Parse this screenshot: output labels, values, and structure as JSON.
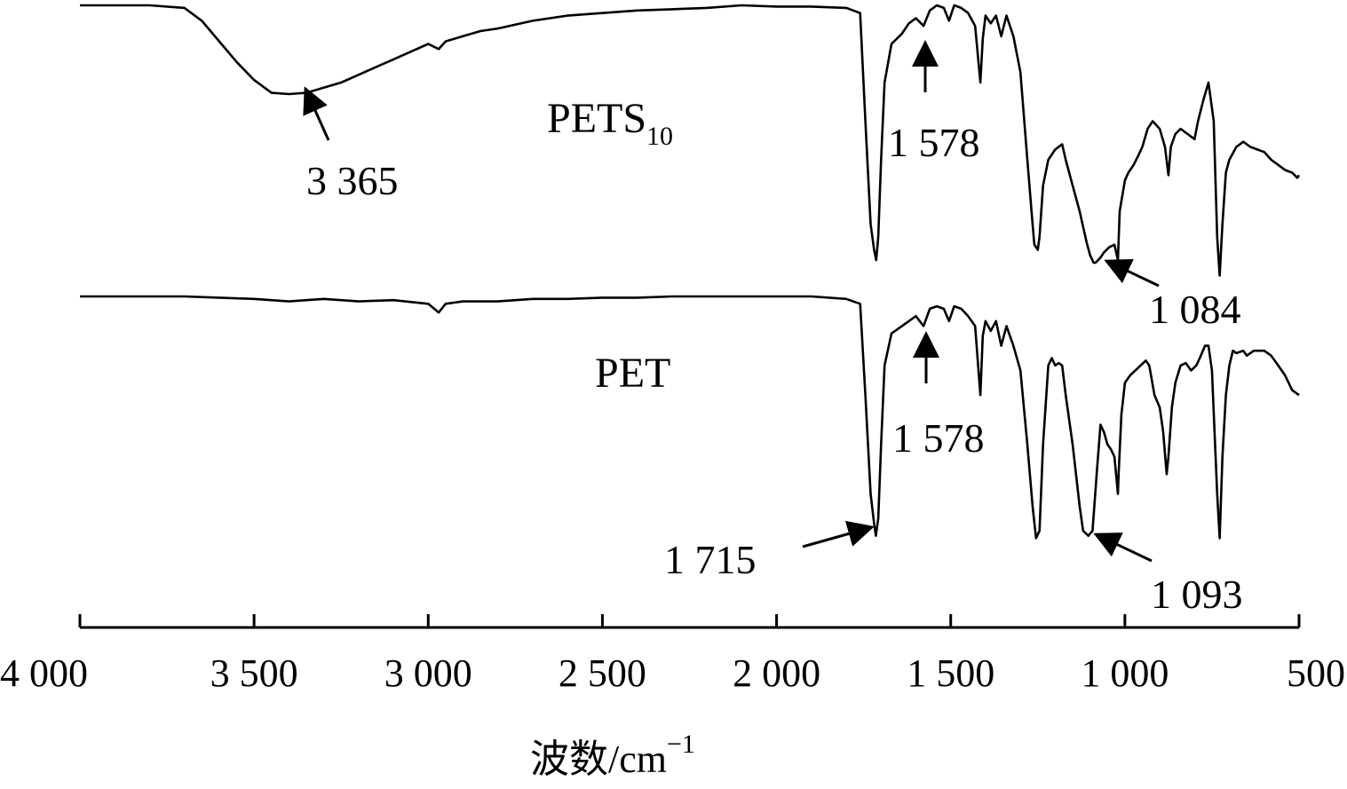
{
  "chart_data": {
    "type": "line",
    "title": "",
    "xlabel": "波数/cm⁻¹",
    "xlabel_parts": {
      "base": "波数/cm",
      "sup": "−1"
    },
    "ylabel": "",
    "xlim": [
      4000,
      500
    ],
    "x_reversed": true,
    "y_ticks_shown": false,
    "grid": false,
    "x_ticks": [
      4000,
      3500,
      3000,
      2500,
      2000,
      1500,
      1000,
      500
    ],
    "x_tick_labels": [
      "4 000",
      "3 500",
      "3 000",
      "2 500",
      "2 000",
      "1 500",
      "1 000",
      "500"
    ],
    "series": [
      {
        "name": "PETS10",
        "label_base": "PETS",
        "label_sub": "10",
        "ylim": [
          0,
          100
        ],
        "points": [
          [
            4000,
            100
          ],
          [
            3800,
            100
          ],
          [
            3700,
            99
          ],
          [
            3650,
            94
          ],
          [
            3600,
            86
          ],
          [
            3550,
            78
          ],
          [
            3500,
            71
          ],
          [
            3450,
            66
          ],
          [
            3400,
            65.5
          ],
          [
            3350,
            66
          ],
          [
            3300,
            68
          ],
          [
            3250,
            70
          ],
          [
            3200,
            73
          ],
          [
            3150,
            76
          ],
          [
            3100,
            79
          ],
          [
            3050,
            82
          ],
          [
            3000,
            85
          ],
          [
            2970,
            83
          ],
          [
            2950,
            86
          ],
          [
            2900,
            88
          ],
          [
            2850,
            90
          ],
          [
            2800,
            91
          ],
          [
            2700,
            94
          ],
          [
            2600,
            96
          ],
          [
            2500,
            97
          ],
          [
            2400,
            98
          ],
          [
            2300,
            98.5
          ],
          [
            2200,
            99
          ],
          [
            2100,
            100
          ],
          [
            2000,
            99.5
          ],
          [
            1900,
            99.5
          ],
          [
            1800,
            99
          ],
          [
            1760,
            97
          ],
          [
            1745,
            55
          ],
          [
            1730,
            15
          ],
          [
            1720,
            5
          ],
          [
            1714,
            1
          ],
          [
            1708,
            10
          ],
          [
            1700,
            40
          ],
          [
            1690,
            70
          ],
          [
            1670,
            85
          ],
          [
            1640,
            89
          ],
          [
            1620,
            93
          ],
          [
            1600,
            95
          ],
          [
            1578,
            92
          ],
          [
            1560,
            98
          ],
          [
            1540,
            100
          ],
          [
            1520,
            99
          ],
          [
            1505,
            94
          ],
          [
            1490,
            100
          ],
          [
            1470,
            99
          ],
          [
            1450,
            97
          ],
          [
            1430,
            92
          ],
          [
            1415,
            70
          ],
          [
            1408,
            87
          ],
          [
            1400,
            96
          ],
          [
            1385,
            93
          ],
          [
            1370,
            96
          ],
          [
            1355,
            88
          ],
          [
            1340,
            96
          ],
          [
            1320,
            88
          ],
          [
            1300,
            74
          ],
          [
            1280,
            40
          ],
          [
            1265,
            15
          ],
          [
            1260,
            7
          ],
          [
            1250,
            5
          ],
          [
            1245,
            10
          ],
          [
            1235,
            30
          ],
          [
            1220,
            40
          ],
          [
            1200,
            44
          ],
          [
            1180,
            46
          ],
          [
            1170,
            40
          ],
          [
            1150,
            30
          ],
          [
            1130,
            20
          ],
          [
            1110,
            8
          ],
          [
            1100,
            3
          ],
          [
            1090,
            0
          ],
          [
            1084,
            0
          ],
          [
            1070,
            2
          ],
          [
            1060,
            4
          ],
          [
            1045,
            6
          ],
          [
            1030,
            7
          ],
          [
            1020,
            1
          ],
          [
            1015,
            20
          ],
          [
            1000,
            32
          ],
          [
            990,
            35
          ],
          [
            975,
            38
          ],
          [
            960,
            42
          ],
          [
            950,
            45
          ],
          [
            935,
            52
          ],
          [
            920,
            55
          ],
          [
            900,
            52
          ],
          [
            885,
            45
          ],
          [
            875,
            34
          ],
          [
            868,
            45
          ],
          [
            855,
            50
          ],
          [
            840,
            52
          ],
          [
            820,
            50
          ],
          [
            800,
            48
          ],
          [
            790,
            55
          ],
          [
            775,
            63
          ],
          [
            760,
            70
          ],
          [
            745,
            55
          ],
          [
            735,
            10
          ],
          [
            728,
            -5
          ],
          [
            720,
            15
          ],
          [
            710,
            35
          ],
          [
            700,
            40
          ],
          [
            680,
            45
          ],
          [
            660,
            47
          ],
          [
            640,
            45
          ],
          [
            620,
            44
          ],
          [
            600,
            43
          ],
          [
            580,
            40
          ],
          [
            560,
            38
          ],
          [
            540,
            36
          ],
          [
            520,
            35
          ],
          [
            505,
            33
          ],
          [
            500,
            34
          ]
        ]
      },
      {
        "name": "PET",
        "label_base": "PET",
        "label_sub": "",
        "ylim": [
          0,
          100
        ],
        "points": [
          [
            4000,
            100
          ],
          [
            3800,
            100
          ],
          [
            3700,
            100
          ],
          [
            3600,
            99.5
          ],
          [
            3500,
            99
          ],
          [
            3400,
            98
          ],
          [
            3300,
            99
          ],
          [
            3200,
            98
          ],
          [
            3100,
            98.5
          ],
          [
            3000,
            97
          ],
          [
            2970,
            93.5
          ],
          [
            2950,
            97
          ],
          [
            2900,
            98
          ],
          [
            2800,
            98
          ],
          [
            2700,
            99
          ],
          [
            2600,
            99
          ],
          [
            2500,
            99.5
          ],
          [
            2400,
            99.5
          ],
          [
            2300,
            100
          ],
          [
            2200,
            100
          ],
          [
            2100,
            100
          ],
          [
            2000,
            100
          ],
          [
            1900,
            100
          ],
          [
            1800,
            99
          ],
          [
            1760,
            97
          ],
          [
            1745,
            60
          ],
          [
            1730,
            20
          ],
          [
            1720,
            8
          ],
          [
            1715,
            3
          ],
          [
            1708,
            10
          ],
          [
            1700,
            40
          ],
          [
            1690,
            72
          ],
          [
            1670,
            85
          ],
          [
            1640,
            88
          ],
          [
            1620,
            90
          ],
          [
            1600,
            92
          ],
          [
            1578,
            88
          ],
          [
            1560,
            95
          ],
          [
            1540,
            96
          ],
          [
            1520,
            95
          ],
          [
            1505,
            90
          ],
          [
            1490,
            96
          ],
          [
            1470,
            95
          ],
          [
            1450,
            92
          ],
          [
            1430,
            88
          ],
          [
            1415,
            60
          ],
          [
            1408,
            84
          ],
          [
            1400,
            90
          ],
          [
            1385,
            86
          ],
          [
            1370,
            90
          ],
          [
            1355,
            80
          ],
          [
            1340,
            88
          ],
          [
            1320,
            80
          ],
          [
            1300,
            70
          ],
          [
            1280,
            40
          ],
          [
            1265,
            15
          ],
          [
            1255,
            2
          ],
          [
            1245,
            5
          ],
          [
            1235,
            40
          ],
          [
            1220,
            72
          ],
          [
            1210,
            75
          ],
          [
            1200,
            72
          ],
          [
            1190,
            73
          ],
          [
            1180,
            72
          ],
          [
            1170,
            60
          ],
          [
            1150,
            40
          ],
          [
            1130,
            15
          ],
          [
            1120,
            5
          ],
          [
            1105,
            3
          ],
          [
            1093,
            5
          ],
          [
            1080,
            30
          ],
          [
            1070,
            48
          ],
          [
            1060,
            45
          ],
          [
            1050,
            40
          ],
          [
            1040,
            38
          ],
          [
            1030,
            35
          ],
          [
            1020,
            20
          ],
          [
            1018,
            28
          ],
          [
            1010,
            52
          ],
          [
            1000,
            65
          ],
          [
            985,
            68
          ],
          [
            970,
            70
          ],
          [
            955,
            72
          ],
          [
            940,
            74
          ],
          [
            930,
            72
          ],
          [
            915,
            60
          ],
          [
            900,
            55
          ],
          [
            890,
            45
          ],
          [
            880,
            28
          ],
          [
            875,
            35
          ],
          [
            865,
            55
          ],
          [
            855,
            65
          ],
          [
            840,
            72
          ],
          [
            825,
            73
          ],
          [
            810,
            70
          ],
          [
            795,
            72
          ],
          [
            785,
            75
          ],
          [
            770,
            80
          ],
          [
            760,
            80
          ],
          [
            750,
            70
          ],
          [
            735,
            20
          ],
          [
            728,
            2
          ],
          [
            720,
            35
          ],
          [
            710,
            60
          ],
          [
            700,
            72
          ],
          [
            690,
            78
          ],
          [
            680,
            77
          ],
          [
            660,
            78
          ],
          [
            650,
            76
          ],
          [
            630,
            78
          ],
          [
            600,
            78
          ],
          [
            580,
            76
          ],
          [
            560,
            72
          ],
          [
            540,
            68
          ],
          [
            520,
            62
          ],
          [
            500,
            60
          ]
        ]
      }
    ],
    "annotations": [
      {
        "series": "PETS10",
        "label": "3 365",
        "x": 3365
      },
      {
        "series": "PETS10",
        "label": "1 578",
        "x": 1578
      },
      {
        "series": "PETS10",
        "label": "1 084",
        "x": 1084
      },
      {
        "series": "PET",
        "label": "1 578",
        "x": 1578
      },
      {
        "series": "PET",
        "label": "1 715",
        "x": 1715
      },
      {
        "series": "PET",
        "label": "1 093",
        "x": 1093
      }
    ]
  },
  "colors": {
    "line": "#000000",
    "background": "#ffffff"
  }
}
